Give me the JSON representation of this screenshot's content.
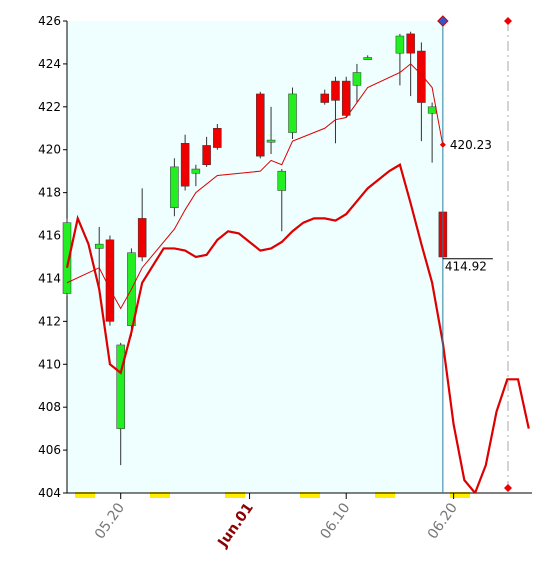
{
  "chart_data": {
    "type": "candlestick",
    "x": [
      0,
      3,
      4,
      5,
      6,
      7,
      10,
      11,
      12,
      13,
      14,
      18,
      19,
      20,
      21,
      24,
      25,
      26,
      27,
      28,
      31,
      32,
      33,
      34,
      35
    ],
    "open": [
      413.3,
      415.4,
      415.8,
      407.0,
      411.8,
      416.8,
      417.3,
      420.3,
      418.9,
      420.2,
      421.0,
      422.6,
      420.35,
      418.1,
      420.8,
      422.6,
      423.2,
      423.2,
      423.0,
      424.2,
      424.5,
      425.4,
      424.6,
      421.7,
      417.1
    ],
    "high": [
      416.8,
      416.4,
      416.0,
      411.0,
      415.4,
      418.2,
      419.6,
      420.7,
      419.3,
      420.6,
      421.2,
      422.7,
      422.0,
      419.1,
      422.9,
      422.8,
      423.4,
      423.4,
      424.0,
      424.4,
      425.4,
      425.5,
      425.0,
      422.2,
      417.1
    ],
    "low": [
      413.2,
      413.5,
      411.8,
      405.3,
      411.3,
      414.8,
      416.9,
      418.1,
      418.3,
      419.2,
      420.0,
      419.6,
      419.8,
      416.2,
      420.5,
      422.1,
      420.3,
      421.5,
      422.2,
      424.2,
      423.0,
      422.5,
      420.4,
      419.4,
      414.9
    ],
    "close": [
      416.6,
      415.6,
      412.0,
      410.9,
      415.2,
      415.0,
      419.2,
      418.3,
      419.1,
      419.3,
      420.1,
      419.7,
      420.45,
      419.0,
      422.6,
      422.2,
      422.3,
      421.6,
      423.6,
      424.3,
      425.3,
      424.5,
      422.2,
      422.0,
      415.0
    ],
    "up_color": "#22ee22",
    "down_color": "#ee0000",
    "lines": [
      {
        "color": "#dd0000",
        "x": [
          0,
          3,
          4,
          5,
          6,
          7,
          10,
          11,
          12,
          14,
          18,
          19,
          20,
          21,
          24,
          25,
          26,
          27,
          28,
          31,
          32,
          33,
          34,
          35
        ],
        "values": [
          413.8,
          414.5,
          413.5,
          412.6,
          413.5,
          414.5,
          416.3,
          417.2,
          418.0,
          418.8,
          419.0,
          419.5,
          419.3,
          420.4,
          421.0,
          421.4,
          421.5,
          422.2,
          422.9,
          423.6,
          424.0,
          423.5,
          422.9,
          420.2
        ]
      },
      {
        "color": "#dd0000",
        "x": [
          0,
          1,
          2,
          3,
          4,
          5,
          6,
          7,
          9,
          10,
          11,
          12,
          13,
          14,
          15,
          16,
          17,
          18,
          19,
          20,
          21,
          22,
          23,
          24,
          25,
          26,
          27,
          28,
          29,
          30,
          31,
          32,
          33,
          34,
          35,
          36,
          37,
          38,
          39,
          40,
          41,
          42,
          43
        ],
        "values": [
          414.5,
          416.8,
          415.6,
          413.5,
          410.0,
          409.6,
          411.5,
          413.8,
          415.4,
          415.4,
          415.3,
          415.0,
          415.1,
          415.8,
          416.2,
          416.1,
          415.7,
          415.3,
          415.4,
          415.7,
          416.2,
          416.6,
          416.8,
          416.8,
          416.7,
          417.0,
          417.6,
          418.2,
          418.6,
          419.0,
          419.3,
          417.5,
          415.6,
          413.8,
          411.0,
          407.2,
          404.6,
          404.0,
          405.3,
          407.8,
          409.3,
          409.3,
          407.0
        ]
      }
    ],
    "annotations": [
      {
        "x": 35,
        "value": 420.23
      },
      {
        "x": 35,
        "value": 414.92
      }
    ],
    "xlim": [
      0,
      43.3
    ],
    "ylim": [
      404,
      426
    ],
    "xticks": [
      {
        "value": 5,
        "label": "05.20"
      },
      {
        "value": 17,
        "label": "Jun.01"
      },
      {
        "value": 26,
        "label": "06.10"
      },
      {
        "value": 36,
        "label": "06.20"
      }
    ],
    "yticks": [
      404,
      406,
      408,
      410,
      412,
      414,
      416,
      418,
      420,
      422,
      424,
      426
    ]
  }
}
